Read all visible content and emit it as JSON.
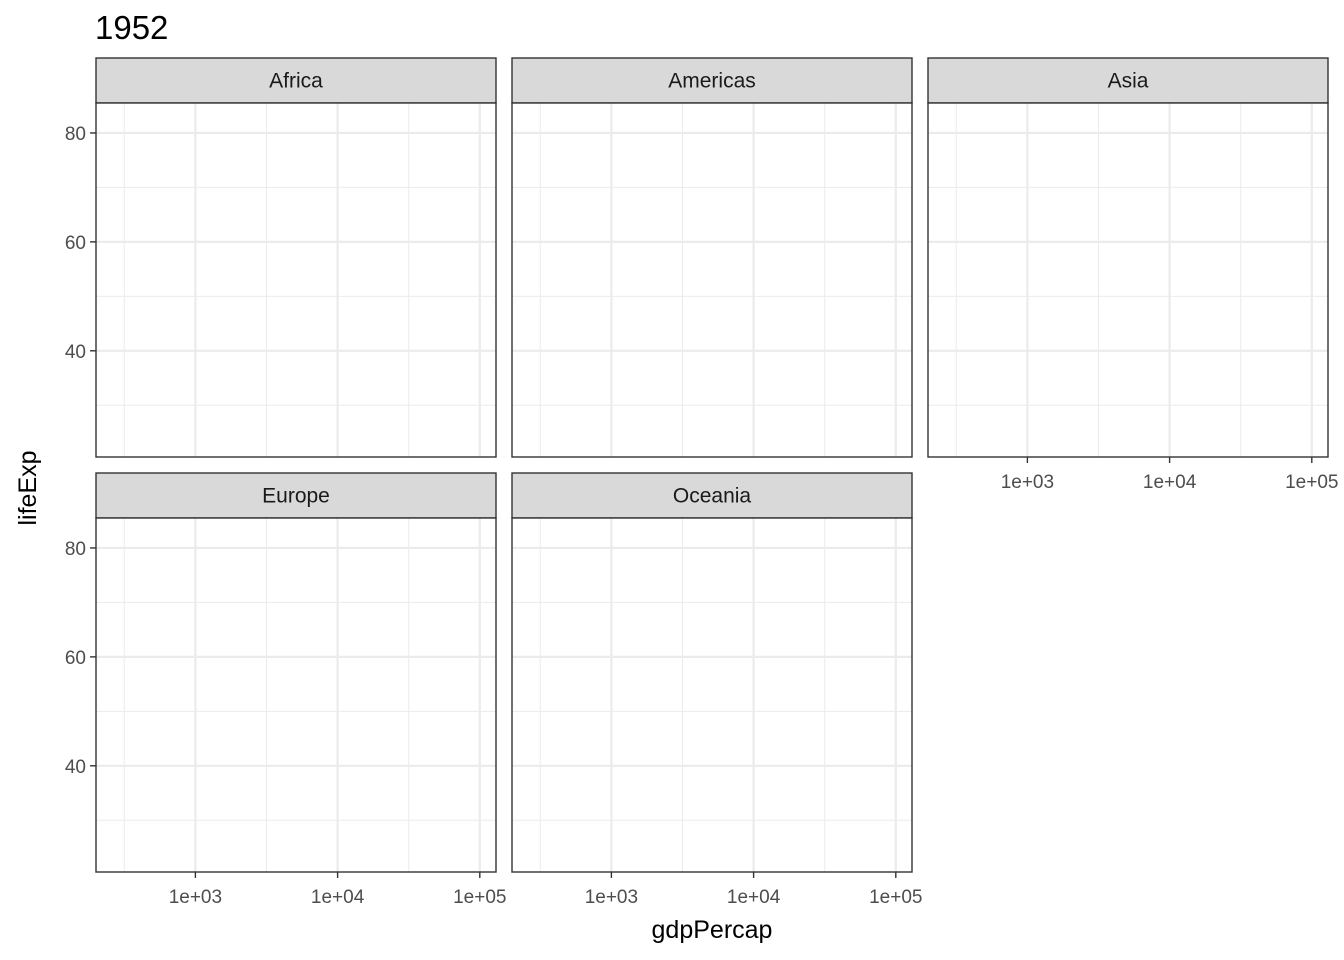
{
  "chart_data": {
    "type": "scatter",
    "title": "1952",
    "xlabel": "gdpPercap",
    "ylabel": "lifeExp",
    "x_scale": "log10",
    "x_range": [
      200,
      130000
    ],
    "x_ticks": [
      1000,
      10000,
      100000
    ],
    "x_tick_labels": [
      "1e+03",
      "1e+04",
      "1e+05"
    ],
    "x_minor_breaks": [
      316,
      3162,
      31623
    ],
    "y_range": [
      20.5,
      85.5
    ],
    "y_ticks": [
      40,
      60,
      80
    ],
    "y_tick_labels": [
      "40",
      "60",
      "80"
    ],
    "y_minor_breaks": [
      30,
      50,
      70
    ],
    "grid": true,
    "facets": [
      {
        "name": "Africa",
        "points": []
      },
      {
        "name": "Americas",
        "points": []
      },
      {
        "name": "Asia",
        "points": []
      },
      {
        "name": "Europe",
        "points": []
      },
      {
        "name": "Oceania",
        "points": []
      }
    ],
    "colors": {
      "strip_fill": "#d9d9d9",
      "strip_border": "#333333",
      "panel_border": "#333333",
      "grid_major": "#ebebeb",
      "grid_minor": "#ebebeb"
    }
  }
}
